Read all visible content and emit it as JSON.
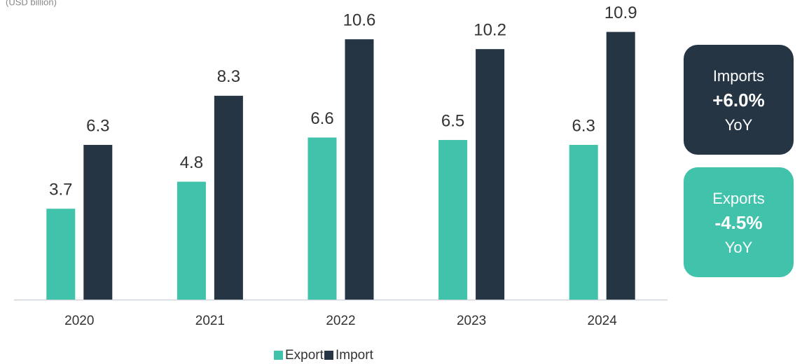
{
  "chart_data": {
    "type": "bar",
    "subtitle": "(USD billion)",
    "categories": [
      "2020",
      "2021",
      "2022",
      "2023",
      "2024"
    ],
    "series": [
      {
        "name": "Export",
        "color": "#40c2ab",
        "values": [
          3.7,
          4.8,
          6.6,
          6.5,
          6.3
        ]
      },
      {
        "name": "Import",
        "color": "#253544",
        "values": [
          6.3,
          8.3,
          10.6,
          10.2,
          10.9
        ]
      }
    ],
    "ylim": [
      0,
      12
    ],
    "annotations": [
      {
        "title": "Imports",
        "value": "+6.0%",
        "note": "YoY",
        "color": "#253544"
      },
      {
        "title": "Exports",
        "value": "-4.5%",
        "note": "YoY",
        "color": "#40c2ab"
      }
    ]
  }
}
